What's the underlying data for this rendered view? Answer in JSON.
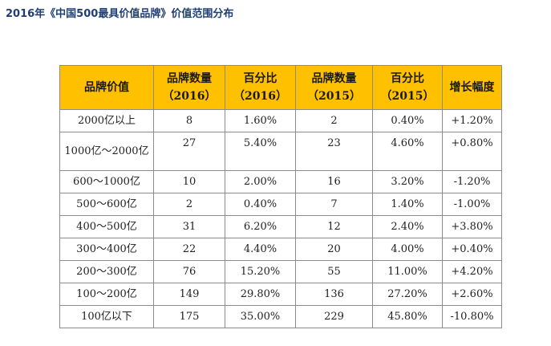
{
  "title": "2016年《中国500最具价值品牌》价值范围分布",
  "table": {
    "headers": [
      {
        "line1": "品牌价值",
        "line2": ""
      },
      {
        "line1": "品牌数量",
        "line2": "（2016）"
      },
      {
        "line1": "百分比",
        "line2": "（2016）"
      },
      {
        "line1": "品牌数量",
        "line2": "（2015）"
      },
      {
        "line1": "百分比",
        "line2": "（2015）"
      },
      {
        "line1": "增长幅度",
        "line2": ""
      }
    ],
    "rows": [
      [
        "2000亿以上",
        "8",
        "1.60%",
        "2",
        "0.40%",
        "+1.20%"
      ],
      [
        "1000亿～2000亿",
        "27",
        "5.40%",
        "23",
        "4.60%",
        "+0.80%"
      ],
      [
        "600～1000亿",
        "10",
        "2.00%",
        "16",
        "3.20%",
        "-1.20%"
      ],
      [
        "500～600亿",
        "2",
        "0.40%",
        "7",
        "1.40%",
        "-1.00%"
      ],
      [
        "400～500亿",
        "31",
        "6.20%",
        "12",
        "2.40%",
        "+3.80%"
      ],
      [
        "300～400亿",
        "22",
        "4.40%",
        "20",
        "4.00%",
        "+0.40%"
      ],
      [
        "200～300亿",
        "76",
        "15.20%",
        "55",
        "11.00%",
        "+4.20%"
      ],
      [
        "100～200亿",
        "149",
        "29.80%",
        "136",
        "27.20%",
        "+2.60%"
      ],
      [
        "100亿以下",
        "175",
        "35.00%",
        "229",
        "45.80%",
        "-10.80%"
      ]
    ]
  },
  "colors": {
    "header_bg": "#ffc000",
    "title_color": "#1f3f74",
    "border": "#8c8c8c"
  }
}
